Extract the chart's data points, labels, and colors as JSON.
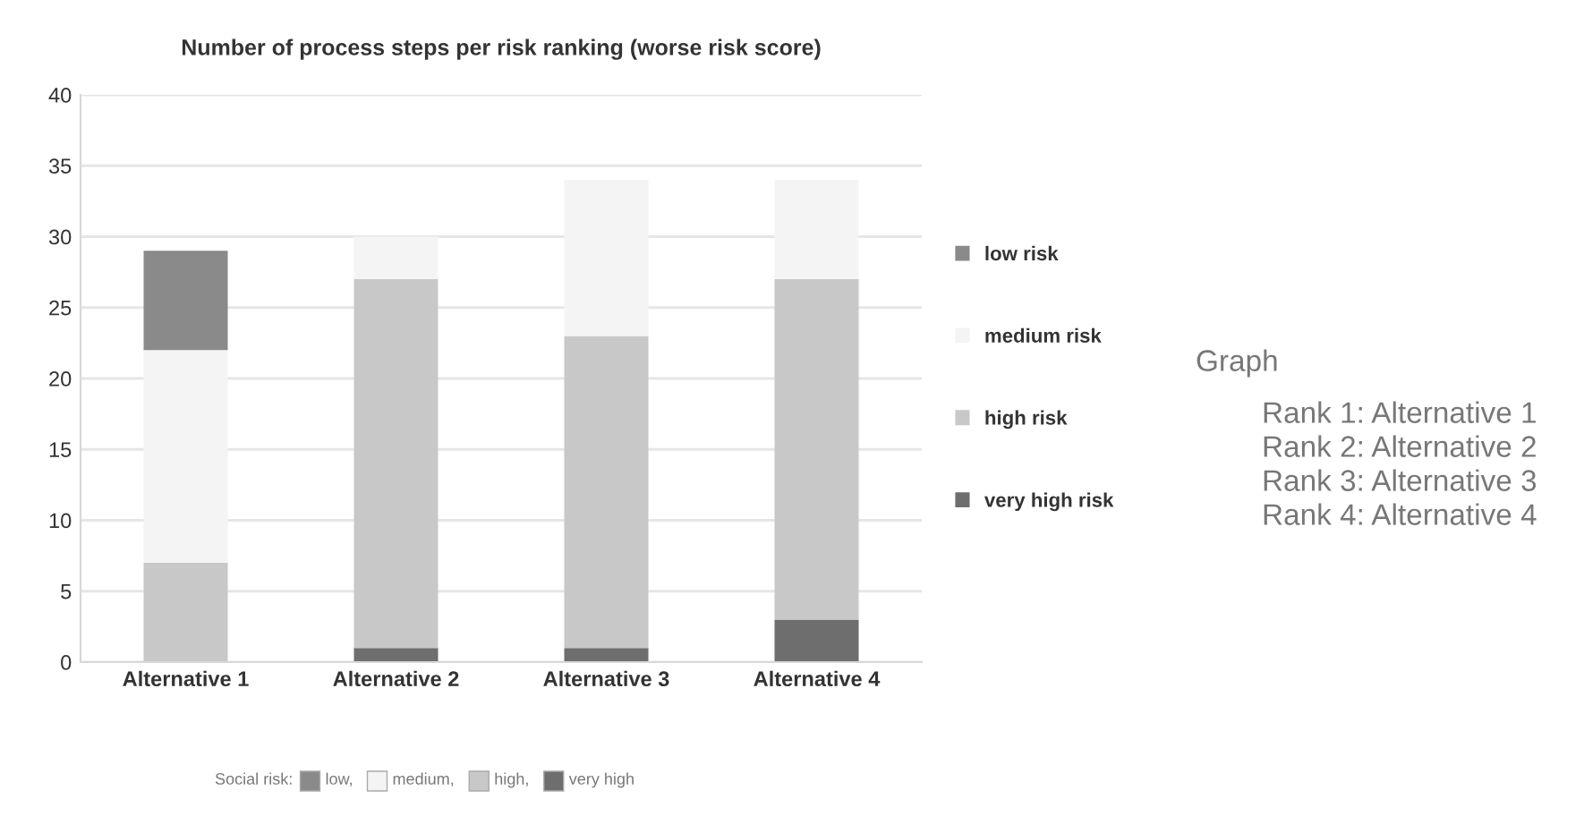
{
  "chart_data": {
    "type": "bar",
    "stacked": true,
    "title": "Number of process steps per risk ranking (worse risk score)",
    "categories": [
      "Alternative 1",
      "Alternative 2",
      "Alternative 3",
      "Alternative 4"
    ],
    "series": [
      {
        "name": "very high risk",
        "color": "#6e6e6e",
        "values": [
          0,
          1,
          1,
          3
        ]
      },
      {
        "name": "high risk",
        "color": "#c8c8c8",
        "values": [
          7,
          26,
          22,
          24
        ]
      },
      {
        "name": "medium risk",
        "color": "#f4f4f4",
        "values": [
          15,
          3,
          11,
          7
        ]
      },
      {
        "name": "low risk",
        "color": "#8a8a8a",
        "values": [
          7,
          0,
          0,
          0
        ]
      }
    ],
    "ylim": [
      0,
      40
    ],
    "yticks": [
      0,
      5,
      10,
      15,
      20,
      25,
      30,
      35,
      40
    ],
    "grid": "y",
    "legend": "right",
    "annotations": [
      "Graph",
      "Rank 1: Alternative 1",
      "Rank 2: Alternative 2",
      "Rank 3: Alternative 3",
      "Rank 4: Alternative 4",
      "Social risk:",
      "low,",
      "medium,",
      "high,",
      "very high"
    ]
  }
}
